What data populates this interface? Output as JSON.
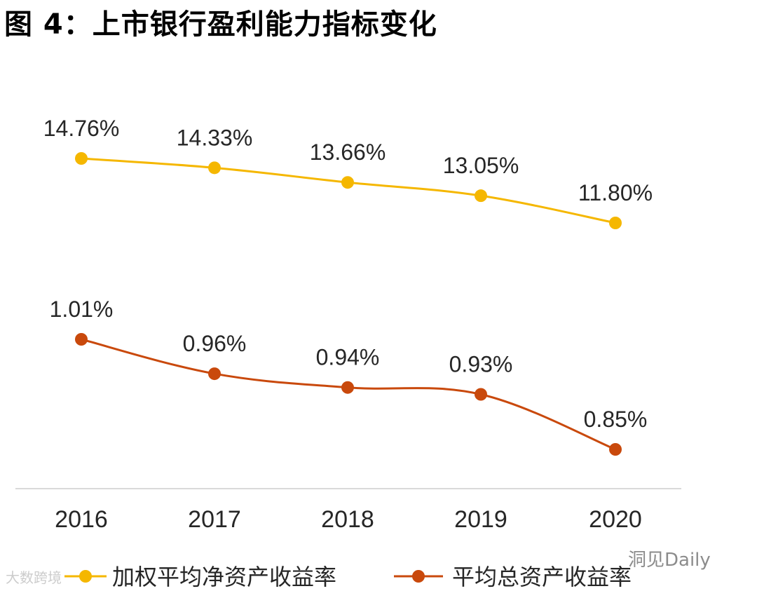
{
  "title": "图 4：上市银行盈利能力指标变化",
  "watermarks": {
    "left": "大数跨境",
    "right": "洞见Daily"
  },
  "colors": {
    "roe": "#F5B700",
    "roa": "#C9490C",
    "axis": "#D9D9D9",
    "text": "#262626"
  },
  "chart_data": {
    "type": "line",
    "categories": [
      "2016",
      "2017",
      "2018",
      "2019",
      "2020"
    ],
    "series": [
      {
        "name": "加权平均净资产收益率",
        "values": [
          14.76,
          14.33,
          13.66,
          13.05,
          11.8
        ],
        "labels": [
          "14.76%",
          "14.33%",
          "13.66%",
          "13.05%",
          "11.80%"
        ]
      },
      {
        "name": "平均总资产收益率",
        "values": [
          1.01,
          0.96,
          0.94,
          0.93,
          0.85
        ],
        "labels": [
          "1.01%",
          "0.96%",
          "0.94%",
          "0.93%",
          "0.85%"
        ]
      }
    ],
    "legend": "bottom",
    "grid": false,
    "y_axis_visible": false
  }
}
